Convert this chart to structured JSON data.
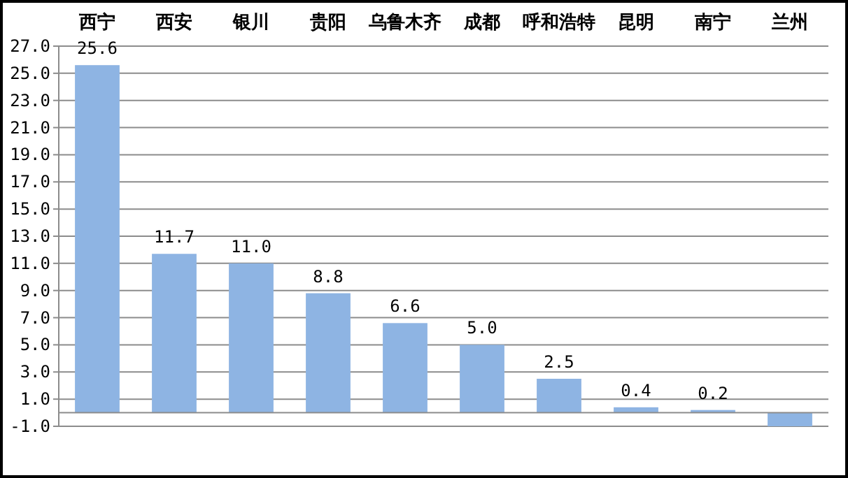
{
  "chart_data": {
    "type": "bar",
    "categories": [
      "西宁",
      "西安",
      "银川",
      "贵阳",
      "乌鲁木齐",
      "成都",
      "呼和浩特",
      "昆明",
      "南宁",
      "兰州"
    ],
    "values": [
      25.6,
      11.7,
      11.0,
      8.8,
      6.6,
      5.0,
      2.5,
      0.4,
      0.2,
      -1.0
    ],
    "value_labels": [
      "25.6",
      "11.7",
      "11.0",
      "8.8",
      "6.6",
      "5.0",
      "2.5",
      "0.4",
      "0.2",
      null
    ],
    "color": "#8eb4e3",
    "ylim": [
      -1,
      27
    ],
    "yticks": [
      {
        "value": -1,
        "label": "-1.0"
      },
      {
        "value": 1,
        "label": "1.0"
      },
      {
        "value": 3,
        "label": "3.0"
      },
      {
        "value": 5,
        "label": "5.0"
      },
      {
        "value": 7,
        "label": "7.0"
      },
      {
        "value": 9,
        "label": "9.0"
      },
      {
        "value": 11,
        "label": "11.0"
      },
      {
        "value": 13,
        "label": "13.0"
      },
      {
        "value": 15,
        "label": "15.0"
      },
      {
        "value": 17,
        "label": "17.0"
      },
      {
        "value": 19,
        "label": "19.0"
      },
      {
        "value": 21,
        "label": "21.0"
      },
      {
        "value": 23,
        "label": "23.0"
      },
      {
        "value": 25,
        "label": "25.0"
      },
      {
        "value": 27,
        "label": "27.0"
      }
    ],
    "grid": "y"
  }
}
